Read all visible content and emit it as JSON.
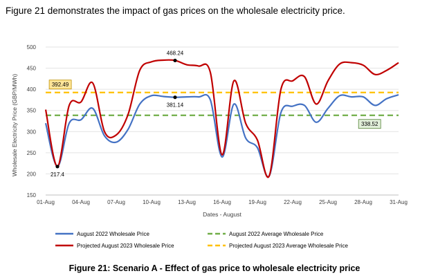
{
  "intro_text": "Figure 21 demonstrates the impact of gas prices on the wholesale electricity price.",
  "caption": "Figure 21: Scenario A - Effect of gas price to wholesale electricity price",
  "chart_data": {
    "type": "line",
    "xlabel": "Dates - August",
    "ylabel": "Wholesale Electricity Price (GBP/MWh)",
    "ylim": [
      150,
      500
    ],
    "yticks": [
      150,
      200,
      250,
      300,
      350,
      400,
      450,
      500
    ],
    "xlim": [
      1,
      31
    ],
    "xticks": [
      {
        "day": 1,
        "label": "01-Aug"
      },
      {
        "day": 4,
        "label": "04-Aug"
      },
      {
        "day": 7,
        "label": "07-Aug"
      },
      {
        "day": 10,
        "label": "10-Aug"
      },
      {
        "day": 13,
        "label": "13-Aug"
      },
      {
        "day": 16,
        "label": "16-Aug"
      },
      {
        "day": 19,
        "label": "19-Aug"
      },
      {
        "day": 22,
        "label": "22-Aug"
      },
      {
        "day": 25,
        "label": "25-Aug"
      },
      {
        "day": 28,
        "label": "28-Aug"
      },
      {
        "day": 31,
        "label": "31-Aug"
      }
    ],
    "grid": "horizontal",
    "legend_position": "bottom",
    "series": [
      {
        "name": "August 2022 Wholesale Price",
        "style": "solid",
        "color": "#4472C4",
        "x": [
          1,
          2,
          3,
          4,
          5,
          6,
          7,
          8,
          9,
          10,
          11,
          12,
          13,
          14,
          15,
          16,
          17,
          18,
          19,
          20,
          21,
          22,
          23,
          24,
          25,
          26,
          27,
          28,
          29,
          30,
          31
        ],
        "values": [
          320,
          217.4,
          320,
          328,
          355,
          290,
          275,
          305,
          365,
          385,
          383,
          381.14,
          382,
          382,
          375,
          240,
          365,
          285,
          262,
          195,
          345,
          360,
          362,
          322,
          355,
          385,
          382,
          382,
          362,
          378,
          387
        ]
      },
      {
        "name": "Projected August 2023 Wholesale Price",
        "style": "solid",
        "color": "#C00000",
        "x": [
          1,
          2,
          3,
          4,
          5,
          6,
          7,
          8,
          9,
          10,
          11,
          12,
          13,
          14,
          15,
          16,
          17,
          18,
          19,
          20,
          21,
          22,
          23,
          24,
          25,
          26,
          27,
          28,
          29,
          30,
          31
        ],
        "values": [
          352,
          217.4,
          362,
          370,
          415,
          300,
          292,
          340,
          445,
          465,
          469,
          468.24,
          458,
          455,
          440,
          245,
          420,
          320,
          280,
          195,
          400,
          420,
          430,
          365,
          420,
          460,
          463,
          457,
          435,
          445,
          463
        ]
      },
      {
        "name": "August 2022 Average Wholesale Price",
        "style": "dashed",
        "color": "#70AD47",
        "x": [
          1,
          31
        ],
        "values": [
          338.52,
          338.52
        ]
      },
      {
        "name": "Projected August 2023 Average Wholesale Price",
        "style": "dashed",
        "color": "#FFC000",
        "x": [
          1,
          31
        ],
        "values": [
          392.49,
          392.49
        ]
      }
    ],
    "annotations": [
      {
        "text": "468.24",
        "x": 12,
        "y": 468.24,
        "marker": true,
        "label_side": "above"
      },
      {
        "text": "381.14",
        "x": 12,
        "y": 381.14,
        "marker": true,
        "label_side": "below"
      },
      {
        "text": "217.4",
        "x": 2,
        "y": 217.4,
        "marker": true,
        "label_side": "below"
      }
    ],
    "callouts": [
      {
        "text": "392.49",
        "x": 1.3,
        "y": 392.49,
        "fill": "#FFE699",
        "border": "#BF9000"
      },
      {
        "text": "338.52",
        "x": 27.6,
        "y": 338.52,
        "fill": "#E2EFDA",
        "border": "#548235"
      }
    ]
  }
}
